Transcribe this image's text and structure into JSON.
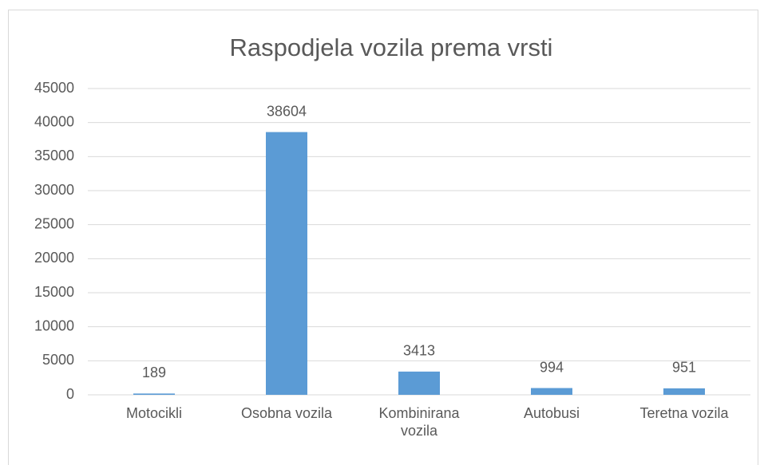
{
  "chart_data": {
    "type": "bar",
    "title": "Raspodjela vozila prema vrsti",
    "categories": [
      "Motocikli",
      "Osobna vozila",
      "Kombinirana vozila",
      "Autobusi",
      "Teretna vozila"
    ],
    "values": [
      189,
      38604,
      3413,
      994,
      951
    ],
    "color": "#5b9bd5",
    "ylim": [
      0,
      45000
    ],
    "yticks": [
      0,
      5000,
      10000,
      15000,
      20000,
      25000,
      30000,
      35000,
      40000,
      45000
    ],
    "grid": true,
    "data_labels": true
  }
}
